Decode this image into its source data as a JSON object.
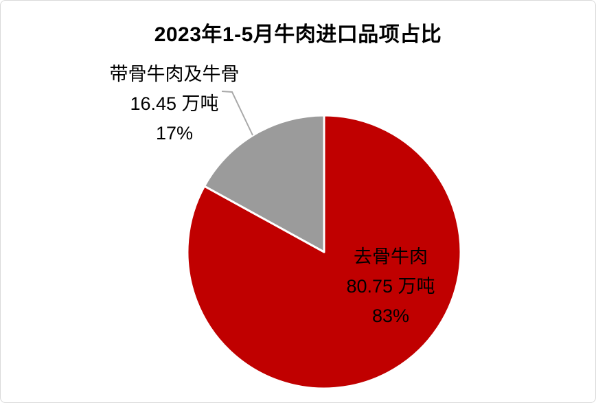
{
  "page": {
    "background": "#ffffff",
    "frame_border_color": "#d9d9d9"
  },
  "chart_data": {
    "type": "pie",
    "title": "2023年1-5月牛肉进口品项占比",
    "unit": "万吨",
    "start_angle_deg": 0,
    "direction": "clockwise",
    "slice_border_color": "#ffffff",
    "leader_line_color": "#a8a8a8",
    "label_text_color": "#000000",
    "slices": [
      {
        "name": "去骨牛肉",
        "value": 80.75,
        "amount_label": "80.75 万吨",
        "percent_label": "83%",
        "percent": 83,
        "color": "#c00000",
        "label_position": "inside"
      },
      {
        "name": "带骨牛肉及牛骨",
        "value": 16.45,
        "amount_label": "16.45 万吨",
        "percent_label": "17%",
        "percent": 17,
        "color": "#9b9b9b",
        "label_position": "outside"
      }
    ]
  }
}
